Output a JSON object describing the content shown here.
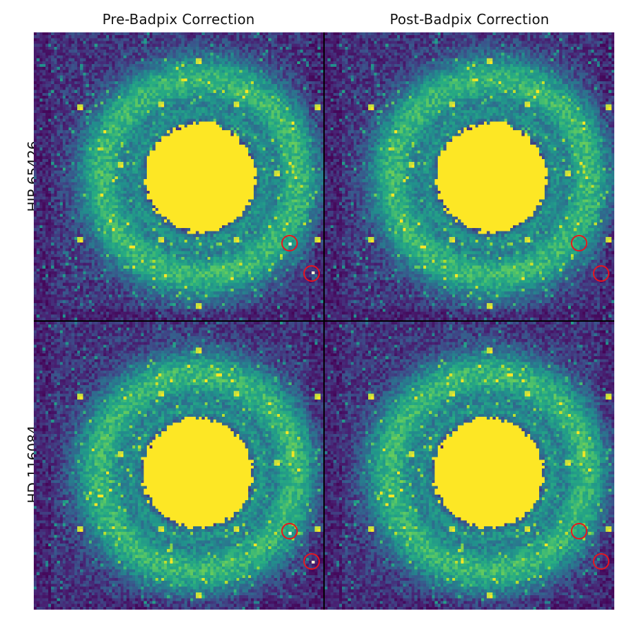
{
  "columns": [
    "Pre-Badpix Correction",
    "Post-Badpix Correction"
  ],
  "rows": [
    "HIP 65426",
    "HD 116084"
  ],
  "panels": [
    {
      "row": 0,
      "col": 0,
      "marked_pixels_visible": true
    },
    {
      "row": 0,
      "col": 1,
      "marked_pixels_visible": false
    },
    {
      "row": 1,
      "col": 0,
      "marked_pixels_visible": true
    },
    {
      "row": 1,
      "col": 1,
      "marked_pixels_visible": false
    }
  ],
  "colormap": "viridis",
  "colors": {
    "background": "#440154",
    "saturated": "#fde725",
    "marker": "#e8141e",
    "panel_border": "#000000"
  }
}
